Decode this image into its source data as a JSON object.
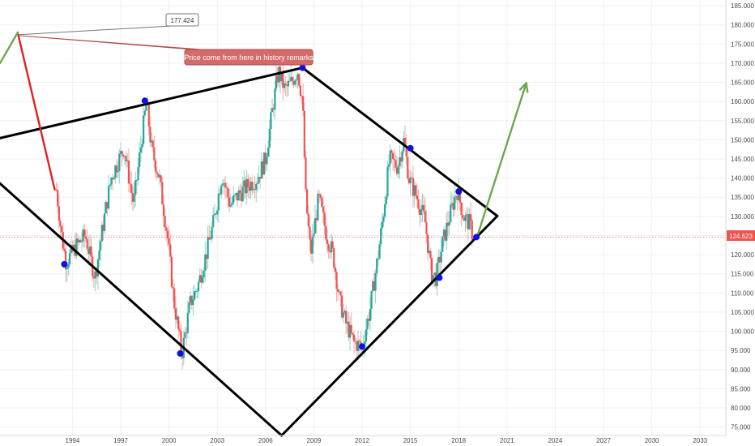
{
  "chart_data": {
    "type": "candlestick",
    "title": "",
    "xlabel": "",
    "ylabel": "",
    "grid": true,
    "x_ticks": [
      "1994",
      "1997",
      "2000",
      "2003",
      "2006",
      "2009",
      "2012",
      "2015",
      "2018",
      "2021",
      "2024",
      "2027",
      "2030",
      "2033"
    ],
    "x_range": [
      1989.5,
      2034.6
    ],
    "y_ticks": [
      "75.000",
      "80.000",
      "85.000",
      "90.000",
      "95.000",
      "100.000",
      "105.000",
      "110.000",
      "115.000",
      "120.000",
      "125.000",
      "130.000",
      "135.000",
      "140.000",
      "145.000",
      "150.000",
      "155.000",
      "160.000",
      "165.000",
      "170.000",
      "175.000",
      "180.000",
      "185.000"
    ],
    "y_range": [
      72.8,
      186.5
    ],
    "current_price": "124.623",
    "current_price_value": 124.623,
    "price_flag": "177.424",
    "price_flag_value": 177.424,
    "annotation_text": "Price come from here in history remarks",
    "colors": {
      "up": "#26a69a",
      "down": "#ef5350",
      "wick_up": "#8fd3cc",
      "wick_down": "#f6a9a8",
      "pattern": "#000000",
      "pivot": "#1010e0",
      "arrow_red": "#e02020",
      "arrow_green": "#6aa84f",
      "price_line": "#ef5350",
      "callout_bg": "#d46a6a"
    },
    "price_path": [
      [
        1993.0,
        137
      ],
      [
        1993.3,
        126
      ],
      [
        1993.6,
        118
      ],
      [
        1994.2,
        122
      ],
      [
        1994.8,
        125
      ],
      [
        1995.4,
        114
      ],
      [
        1995.8,
        125
      ],
      [
        1996.4,
        140
      ],
      [
        1997.2,
        148
      ],
      [
        1997.8,
        133
      ],
      [
        1998.3,
        150
      ],
      [
        1998.6,
        160
      ],
      [
        1998.9,
        148
      ],
      [
        1999.4,
        140
      ],
      [
        1999.9,
        125
      ],
      [
        2000.3,
        108
      ],
      [
        2000.8,
        94
      ],
      [
        2001.3,
        107
      ],
      [
        2001.8,
        112
      ],
      [
        2002.3,
        120
      ],
      [
        2002.8,
        129
      ],
      [
        2003.3,
        141
      ],
      [
        2003.8,
        133
      ],
      [
        2004.4,
        136
      ],
      [
        2004.9,
        138
      ],
      [
        2005.5,
        140
      ],
      [
        2006.0,
        145
      ],
      [
        2006.4,
        157
      ],
      [
        2006.8,
        168
      ],
      [
        2007.2,
        163
      ],
      [
        2007.6,
        165
      ],
      [
        2008.0,
        168
      ],
      [
        2008.3,
        160
      ],
      [
        2008.5,
        135
      ],
      [
        2008.8,
        120
      ],
      [
        2009.3,
        135
      ],
      [
        2009.8,
        125
      ],
      [
        2010.2,
        120
      ],
      [
        2010.6,
        108
      ],
      [
        2011.0,
        102
      ],
      [
        2011.5,
        97
      ],
      [
        2012.0,
        96
      ],
      [
        2012.5,
        106
      ],
      [
        2013.0,
        120
      ],
      [
        2013.3,
        130
      ],
      [
        2013.7,
        145
      ],
      [
        2014.2,
        143
      ],
      [
        2014.6,
        150
      ],
      [
        2014.9,
        140
      ],
      [
        2015.4,
        135
      ],
      [
        2015.9,
        129
      ],
      [
        2016.3,
        115
      ],
      [
        2016.6,
        114
      ],
      [
        2017.0,
        123
      ],
      [
        2017.5,
        131
      ],
      [
        2017.9,
        137
      ],
      [
        2018.3,
        130
      ],
      [
        2018.7,
        128
      ],
      [
        2018.9,
        124.6
      ]
    ],
    "pivots": [
      [
        1993.5,
        117.5
      ],
      [
        1998.5,
        160.2
      ],
      [
        2000.7,
        94.2
      ],
      [
        2008.3,
        168.8
      ],
      [
        2012.0,
        96.0
      ],
      [
        2015.0,
        147.8
      ],
      [
        2016.8,
        114.0
      ],
      [
        2018.0,
        136.5
      ],
      [
        2019.1,
        124.6
      ]
    ],
    "pattern_lines": [
      [
        [
          1987.0,
          148.0
        ],
        [
          2008.3,
          168.8
        ]
      ],
      [
        [
          1987.0,
          148.0
        ],
        [
          2007.0,
          72.8
        ]
      ],
      [
        [
          2008.3,
          168.8
        ],
        [
          2020.4,
          130.1
        ]
      ],
      [
        [
          2007.0,
          72.8
        ],
        [
          2020.4,
          130.1
        ]
      ]
    ],
    "arrows": [
      {
        "color": "red",
        "from": [
          1992.9,
          137.0
        ],
        "to": [
          1990.6,
          178.0
        ]
      },
      {
        "color": "green",
        "from": [
          1989.5,
          170.0
        ],
        "to": [
          1990.6,
          178.0
        ]
      },
      {
        "color": "green",
        "from": [
          2019.2,
          125.4
        ],
        "to": [
          2022.2,
          164.8
        ]
      }
    ]
  }
}
